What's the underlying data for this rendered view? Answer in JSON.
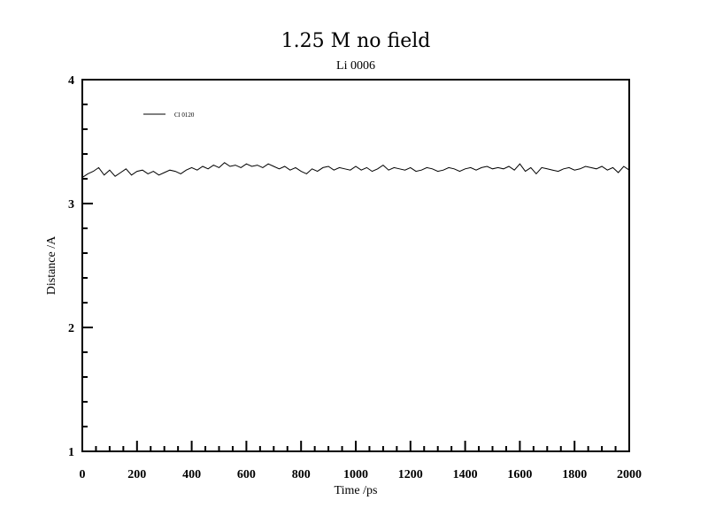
{
  "chart_data": {
    "type": "line",
    "title": "1.25 M no field",
    "subtitle": "Li 0006",
    "xlabel": "Time /ps",
    "ylabel": "Distance /A",
    "xlim": [
      0,
      2000
    ],
    "ylim": [
      1,
      4
    ],
    "x_ticks": [
      0,
      200,
      400,
      600,
      800,
      1000,
      1200,
      1400,
      1600,
      1800,
      2000
    ],
    "x_tick_labels": [
      "0",
      "200",
      "400",
      "600",
      "800",
      "1000",
      "1200",
      "1400",
      "1600",
      "1800",
      "2000"
    ],
    "y_ticks": [
      1,
      2,
      3,
      4
    ],
    "y_tick_labels": [
      "1",
      "2",
      "3",
      "4"
    ],
    "grid": false,
    "legend_position": "top-left",
    "series": [
      {
        "name": "Cl 0120",
        "color": "#000000",
        "x": [
          0,
          20,
          40,
          60,
          80,
          100,
          120,
          140,
          160,
          180,
          200,
          220,
          240,
          260,
          280,
          300,
          320,
          340,
          360,
          380,
          400,
          420,
          440,
          460,
          480,
          500,
          520,
          540,
          560,
          580,
          600,
          620,
          640,
          660,
          680,
          700,
          720,
          740,
          760,
          780,
          800,
          820,
          840,
          860,
          880,
          900,
          920,
          940,
          960,
          980,
          1000,
          1020,
          1040,
          1060,
          1080,
          1100,
          1120,
          1140,
          1160,
          1180,
          1200,
          1220,
          1240,
          1260,
          1280,
          1300,
          1320,
          1340,
          1360,
          1380,
          1400,
          1420,
          1440,
          1460,
          1480,
          1500,
          1520,
          1540,
          1560,
          1580,
          1600,
          1620,
          1640,
          1660,
          1680,
          1700,
          1720,
          1740,
          1760,
          1780,
          1800,
          1820,
          1840,
          1860,
          1880,
          1900,
          1920,
          1940,
          1960,
          1980,
          2000
        ],
        "y": [
          3.21,
          3.24,
          3.26,
          3.29,
          3.23,
          3.27,
          3.22,
          3.25,
          3.28,
          3.23,
          3.26,
          3.27,
          3.24,
          3.26,
          3.23,
          3.25,
          3.27,
          3.26,
          3.24,
          3.27,
          3.29,
          3.27,
          3.3,
          3.28,
          3.31,
          3.29,
          3.33,
          3.3,
          3.31,
          3.29,
          3.32,
          3.3,
          3.31,
          3.29,
          3.32,
          3.3,
          3.28,
          3.3,
          3.27,
          3.29,
          3.26,
          3.24,
          3.28,
          3.26,
          3.29,
          3.3,
          3.27,
          3.29,
          3.28,
          3.27,
          3.3,
          3.27,
          3.29,
          3.26,
          3.28,
          3.31,
          3.27,
          3.29,
          3.28,
          3.27,
          3.29,
          3.26,
          3.27,
          3.29,
          3.28,
          3.26,
          3.27,
          3.29,
          3.28,
          3.26,
          3.28,
          3.29,
          3.27,
          3.29,
          3.3,
          3.28,
          3.29,
          3.28,
          3.3,
          3.27,
          3.32,
          3.26,
          3.29,
          3.24,
          3.29,
          3.28,
          3.27,
          3.26,
          3.28,
          3.29,
          3.27,
          3.28,
          3.3,
          3.29,
          3.28,
          3.3,
          3.27,
          3.29,
          3.25,
          3.3,
          3.27
        ]
      }
    ]
  }
}
